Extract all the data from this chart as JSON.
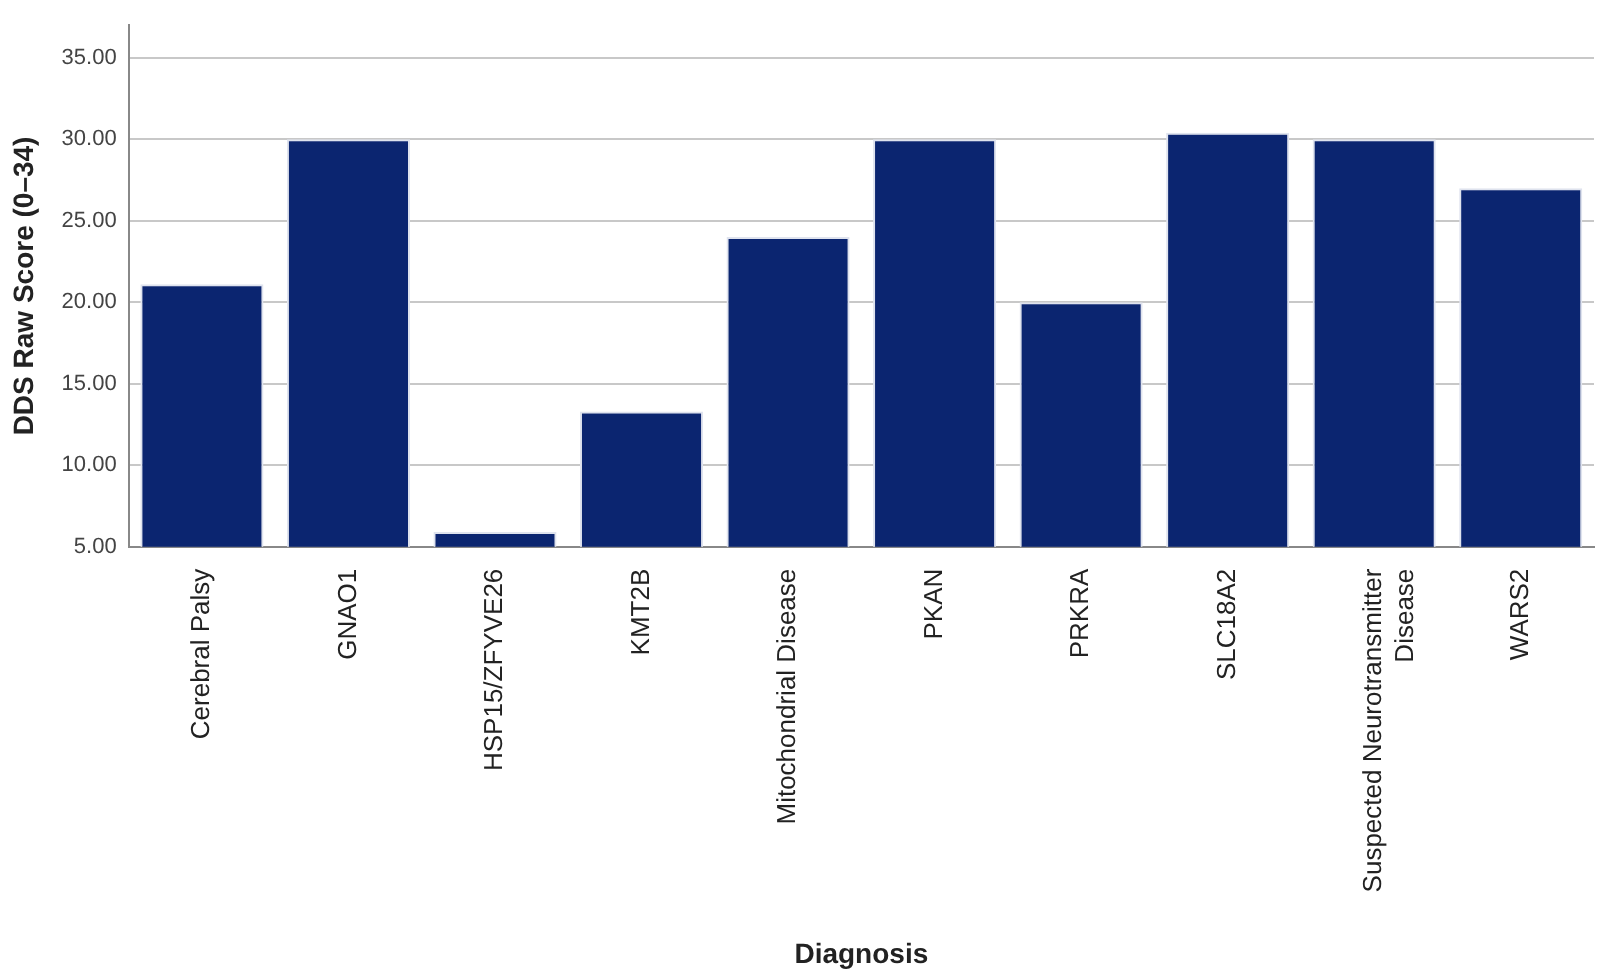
{
  "chart_data": {
    "type": "bar",
    "xlabel": "Diagnosis",
    "ylabel": "DDS Raw Score (0–34)",
    "categories": [
      "Cerebral Palsy",
      "GNAO1",
      "HSP15/ZFYVE26",
      "KMT2B",
      "Mitochondrial Disease",
      "PKAN",
      "PRKRA",
      "SLC18A2",
      "Suspected Neurotransmitter Disease",
      "WARS2"
    ],
    "values": [
      21.1,
      30,
      5.9,
      13.3,
      24,
      30,
      20,
      30.4,
      30,
      27
    ],
    "color": "#0b2570",
    "ylim": [
      5,
      37
    ],
    "yticks": [
      {
        "value": 5,
        "label": "5.00"
      },
      {
        "value": 10,
        "label": "10.00"
      },
      {
        "value": 15,
        "label": "15.00"
      },
      {
        "value": 20,
        "label": "20.00"
      },
      {
        "value": 25,
        "label": "25.00"
      },
      {
        "value": 30,
        "label": "30.00"
      },
      {
        "value": 35,
        "label": "35.00"
      }
    ],
    "grid": "y",
    "legend": false
  }
}
